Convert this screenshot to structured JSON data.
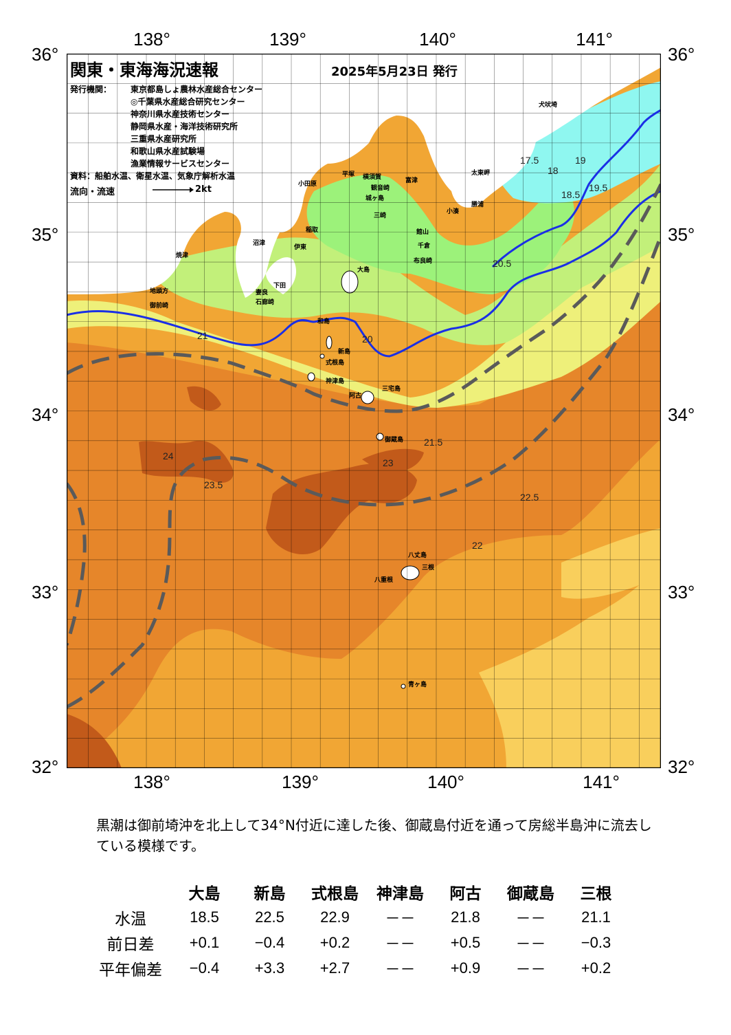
{
  "header": {
    "title": "関東・東海海況速報",
    "date": "2025年5月23日 発行",
    "issuer_label": "発行機関：",
    "issuers": [
      "東京都島しょ農林水産総合センター",
      "◎千葉県水産総合研究センター",
      "神奈川県水産技術センター",
      "静岡県水産・海洋技術研究所",
      "三重県水産研究所",
      "和歌山県水産試験場",
      "漁業情報サービスセンター"
    ],
    "source": "資料：船舶水温、衛星水温、気象庁解析水温",
    "flow_label": "流向・流速",
    "flow_scale": "2kt"
  },
  "axes": {
    "lon_ticks": [
      "138°",
      "139°",
      "140°",
      "141°"
    ],
    "lat_ticks": [
      "36°",
      "35°",
      "34°",
      "33°",
      "32°"
    ]
  },
  "places": [
    {
      "name": "犬吠埼"
    },
    {
      "name": "太東岬"
    },
    {
      "name": "勝浦"
    },
    {
      "name": "小湊"
    },
    {
      "name": "館山"
    },
    {
      "name": "千倉"
    },
    {
      "name": "布良崎"
    },
    {
      "name": "富津"
    },
    {
      "name": "横須賀"
    },
    {
      "name": "平塚"
    },
    {
      "name": "小田原"
    },
    {
      "name": "観音崎"
    },
    {
      "name": "城ヶ島"
    },
    {
      "name": "三崎"
    },
    {
      "name": "大島"
    },
    {
      "name": "稲取"
    },
    {
      "name": "伊東"
    },
    {
      "name": "下田"
    },
    {
      "name": "石廊崎"
    },
    {
      "name": "妻良"
    },
    {
      "name": "沼津"
    },
    {
      "name": "焼津"
    },
    {
      "name": "御前崎"
    },
    {
      "name": "和島"
    },
    {
      "name": "地頭方"
    },
    {
      "name": "新島"
    },
    {
      "name": "式根島"
    },
    {
      "name": "神津島"
    },
    {
      "name": "阿古"
    },
    {
      "name": "三宅島"
    },
    {
      "name": "御蔵島"
    },
    {
      "name": "八丈島"
    },
    {
      "name": "三根"
    },
    {
      "name": "八重根"
    },
    {
      "name": "青ヶ島"
    }
  ],
  "contour_labels": [
    "17.5",
    "18",
    "18.5",
    "19",
    "19.5",
    "20",
    "20.5",
    "21",
    "21.5",
    "22",
    "22.5",
    "23",
    "23.5",
    "24"
  ],
  "legend_colors": {
    "t17": "#8ff7f0",
    "t18": "#9cf27a",
    "t19": "#c2f07a",
    "t20": "#eef07a",
    "t21": "#f9cf5c",
    "t22": "#f1a634",
    "t23": "#e6862a",
    "t24": "#c25a1a",
    "kuroshio_axis": "#5a5a5a",
    "isotherm_blue": "#1a2fe6"
  },
  "summary": "黒潮は御前埼沖を北上して34°N付近に達した後、御蔵島付近を通って房総半島沖に流去している模様です。",
  "stats": {
    "columns": [
      "大島",
      "新島",
      "式根島",
      "神津島",
      "阿古",
      "御蔵島",
      "三根"
    ],
    "rows": [
      {
        "label": "水温",
        "values": [
          "18.5",
          "22.5",
          "22.9",
          "－－",
          "21.8",
          "－－",
          "21.1"
        ]
      },
      {
        "label": "前日差",
        "values": [
          "+0.1",
          "−0.4",
          "+0.2",
          "－－",
          "+0.5",
          "－－",
          "−0.3"
        ]
      },
      {
        "label": "平年偏差",
        "values": [
          "−0.4",
          "+3.3",
          "+2.7",
          "－－",
          "+0.9",
          "－－",
          "+0.2"
        ]
      }
    ]
  }
}
